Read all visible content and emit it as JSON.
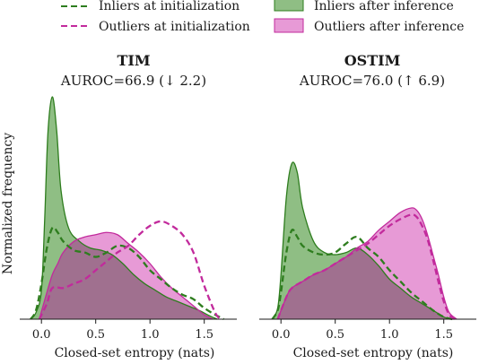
{
  "legend": {
    "entries": [
      {
        "label": "Inliers at initialization",
        "style": "dashed",
        "color": "#2e7d1e"
      },
      {
        "label": "Outliers at initialization",
        "style": "dashed",
        "color": "#c22a9c"
      },
      {
        "label": "Inliers after inference",
        "style": "filled",
        "color": "#2e7d1e",
        "fill": "#8fbe84"
      },
      {
        "label": "Outliers after inference",
        "style": "filled",
        "color": "#c22a9c",
        "fill": "#e79ad6"
      }
    ]
  },
  "colors": {
    "inlier_line": "#2e7d1e",
    "inlier_fill": "#8fbe84",
    "outlier_line": "#c22a9c",
    "outlier_fill": "#e79ad6",
    "overlap_fill": "#a0708f"
  },
  "chart_data": [
    {
      "type": "area",
      "title": "TIM",
      "subtitle": "AUROC=66.9 (↓ 2.2)",
      "xlabel": "Closed-set entropy (nats)",
      "ylabel": "Normalized frequency",
      "xlim": [
        -0.2,
        1.8
      ],
      "ylim": [
        0,
        1.0
      ],
      "xticks": [
        0.0,
        0.5,
        1.0,
        1.5
      ],
      "xtick_labels": [
        "0.0",
        "0.5",
        "1.0",
        "1.5"
      ],
      "series": [
        {
          "name": "Inliers after inference",
          "style": "filled",
          "color": "inlier",
          "x": [
            -0.1,
            -0.05,
            0.0,
            0.03,
            0.06,
            0.1,
            0.14,
            0.18,
            0.25,
            0.35,
            0.45,
            0.55,
            0.65,
            0.75,
            0.85,
            0.95,
            1.05,
            1.15,
            1.25,
            1.35,
            1.45,
            1.55,
            1.62
          ],
          "y": [
            0.0,
            0.03,
            0.13,
            0.45,
            0.84,
            1.0,
            0.85,
            0.58,
            0.41,
            0.35,
            0.32,
            0.31,
            0.29,
            0.25,
            0.2,
            0.16,
            0.13,
            0.1,
            0.08,
            0.06,
            0.04,
            0.015,
            0.0
          ]
        },
        {
          "name": "Outliers after inference",
          "style": "filled",
          "color": "outlier",
          "x": [
            -0.02,
            0.05,
            0.1,
            0.15,
            0.2,
            0.3,
            0.4,
            0.5,
            0.6,
            0.7,
            0.8,
            0.9,
            1.0,
            1.1,
            1.2,
            1.3,
            1.4,
            1.5,
            1.58
          ],
          "y": [
            0.0,
            0.12,
            0.2,
            0.25,
            0.3,
            0.35,
            0.37,
            0.38,
            0.39,
            0.38,
            0.34,
            0.3,
            0.25,
            0.19,
            0.14,
            0.1,
            0.06,
            0.02,
            0.0
          ]
        },
        {
          "name": "Inliers at initialization",
          "style": "dashed",
          "color": "inlier",
          "x": [
            -0.1,
            -0.05,
            0.0,
            0.05,
            0.1,
            0.15,
            0.2,
            0.3,
            0.4,
            0.5,
            0.6,
            0.7,
            0.8,
            0.9,
            1.0,
            1.1,
            1.2,
            1.3,
            1.4,
            1.5,
            1.6,
            1.68
          ],
          "y": [
            0.0,
            0.04,
            0.16,
            0.32,
            0.41,
            0.39,
            0.35,
            0.31,
            0.3,
            0.28,
            0.3,
            0.33,
            0.32,
            0.28,
            0.22,
            0.18,
            0.14,
            0.11,
            0.09,
            0.05,
            0.02,
            0.0
          ]
        },
        {
          "name": "Outliers at initialization",
          "style": "dashed",
          "color": "outlier",
          "x": [
            -0.02,
            0.05,
            0.1,
            0.2,
            0.3,
            0.4,
            0.5,
            0.6,
            0.7,
            0.8,
            0.9,
            1.0,
            1.1,
            1.2,
            1.3,
            1.4,
            1.5,
            1.6,
            1.65
          ],
          "y": [
            0.0,
            0.07,
            0.14,
            0.14,
            0.16,
            0.18,
            0.22,
            0.26,
            0.3,
            0.33,
            0.38,
            0.42,
            0.44,
            0.42,
            0.38,
            0.3,
            0.15,
            0.03,
            0.0
          ]
        }
      ]
    },
    {
      "type": "area",
      "title": "OSTIM",
      "subtitle": "AUROC=76.0 (↑ 6.9)",
      "xlabel": "Closed-set entropy (nats)",
      "ylabel": "",
      "xlim": [
        -0.2,
        1.8
      ],
      "ylim": [
        0,
        1.0
      ],
      "xticks": [
        0.0,
        0.5,
        1.0,
        1.5
      ],
      "xtick_labels": [
        "0.0",
        "0.5",
        "1.0",
        "1.5"
      ],
      "series": [
        {
          "name": "Inliers after inference",
          "style": "filled",
          "color": "inlier",
          "x": [
            -0.08,
            -0.03,
            0.0,
            0.05,
            0.1,
            0.15,
            0.2,
            0.3,
            0.4,
            0.5,
            0.6,
            0.7,
            0.8,
            0.9,
            1.0,
            1.1,
            1.2,
            1.3,
            1.4,
            1.5,
            1.56
          ],
          "y": [
            0.0,
            0.05,
            0.2,
            0.55,
            0.7,
            0.66,
            0.5,
            0.35,
            0.3,
            0.29,
            0.3,
            0.32,
            0.29,
            0.24,
            0.18,
            0.14,
            0.1,
            0.07,
            0.04,
            0.01,
            0.0
          ]
        },
        {
          "name": "Outliers after inference",
          "style": "filled",
          "color": "outlier",
          "x": [
            -0.03,
            0.05,
            0.1,
            0.2,
            0.3,
            0.4,
            0.5,
            0.6,
            0.7,
            0.8,
            0.9,
            1.0,
            1.1,
            1.2,
            1.25,
            1.3,
            1.35,
            1.4,
            1.45,
            1.5,
            1.55,
            1.62
          ],
          "y": [
            0.0,
            0.1,
            0.14,
            0.17,
            0.2,
            0.22,
            0.25,
            0.28,
            0.32,
            0.35,
            0.4,
            0.44,
            0.48,
            0.5,
            0.49,
            0.45,
            0.38,
            0.29,
            0.2,
            0.1,
            0.03,
            0.0
          ]
        },
        {
          "name": "Inliers at initialization",
          "style": "dashed",
          "color": "inlier",
          "x": [
            -0.08,
            -0.03,
            0.0,
            0.05,
            0.1,
            0.15,
            0.2,
            0.3,
            0.4,
            0.5,
            0.6,
            0.7,
            0.8,
            0.9,
            1.0,
            1.1,
            1.2,
            1.3,
            1.4,
            1.5,
            1.58
          ],
          "y": [
            0.0,
            0.04,
            0.12,
            0.3,
            0.4,
            0.37,
            0.33,
            0.3,
            0.29,
            0.3,
            0.34,
            0.37,
            0.32,
            0.28,
            0.22,
            0.17,
            0.12,
            0.08,
            0.04,
            0.01,
            0.0
          ]
        },
        {
          "name": "Outliers at initialization",
          "style": "dashed",
          "color": "outlier",
          "x": [
            -0.03,
            0.05,
            0.1,
            0.2,
            0.3,
            0.4,
            0.5,
            0.6,
            0.7,
            0.8,
            0.9,
            1.0,
            1.1,
            1.2,
            1.25,
            1.3,
            1.35,
            1.4,
            1.45,
            1.5,
            1.55,
            1.6
          ],
          "y": [
            0.0,
            0.1,
            0.14,
            0.17,
            0.2,
            0.22,
            0.25,
            0.28,
            0.31,
            0.34,
            0.38,
            0.42,
            0.45,
            0.47,
            0.46,
            0.42,
            0.36,
            0.27,
            0.17,
            0.08,
            0.02,
            0.0
          ]
        }
      ]
    }
  ]
}
